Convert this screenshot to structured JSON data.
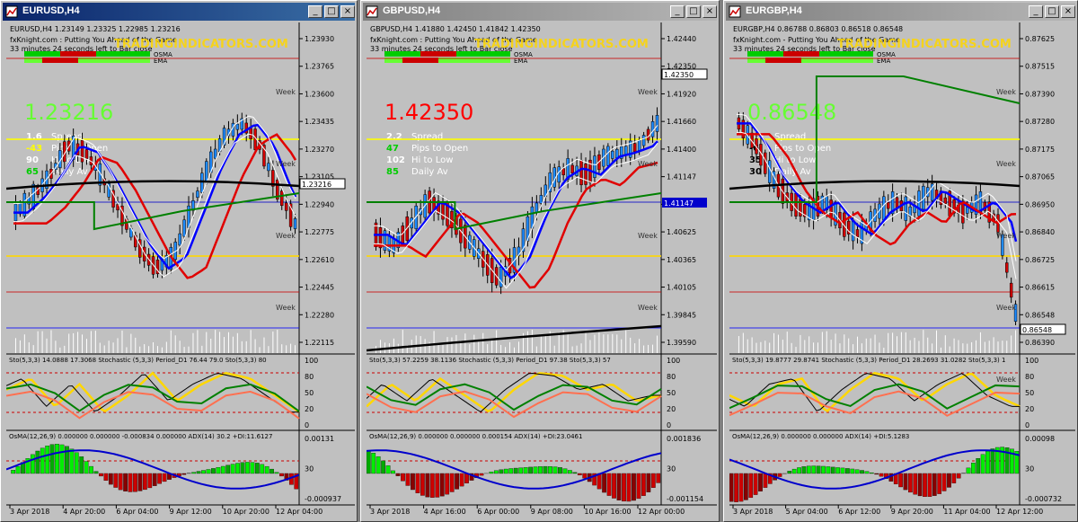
{
  "windows": [
    {
      "title": "EURUSD,H4",
      "active": true,
      "header": "EURUSD,H4 1.23149 1.23325 1.22985 1.23216",
      "promo_line": "fxKnight.com : Putting You Ahead of the Game",
      "countdown": "33 minutes 24 seconds left to Bar close",
      "watermark": "TRADINGINDICATORS.COM",
      "osma_label": "OSMA",
      "ema_label": "EMA",
      "big_price": "1.23216",
      "big_price_color": "#66ff33",
      "info": [
        {
          "value": "1.6",
          "label": "Spread",
          "color": "#ffffff"
        },
        {
          "value": "-43",
          "label": "Pips to Open",
          "color": "#ffff00"
        },
        {
          "value": "90",
          "label": "Hi to Low",
          "color": "#ffffff"
        },
        {
          "value": "65",
          "label": "Daily Av",
          "color": "#00cc00"
        }
      ],
      "price_ticks": [
        "1.23930",
        "1.23765",
        "1.23600",
        "1.23435",
        "1.23270",
        "1.23105",
        "1.22940",
        "1.22775",
        "1.22610",
        "1.22445",
        "1.22280",
        "1.22115"
      ],
      "current_price_tag": "1.23216",
      "week_labels": [
        "Week",
        "Week",
        "Week",
        "Week"
      ],
      "stoch_header": "Sto(5,3,3) 14.0888 17.3068 Stochastic (5,3,3) Period_D1 76.44 79.0 Sto(5,3,3) 80",
      "stoch_ticks": [
        "100",
        "80",
        "50",
        "20",
        "0"
      ],
      "osma_header": "OsMA(12,26,9) 0.000000 0.000000 -0.000834 0.000000 ADX(14) 30.2 +DI:11.6127",
      "osma_ticks": [
        "0.00131",
        "30",
        "-0.000937"
      ],
      "x_labels": [
        "3 Apr 2018",
        "4 Apr 20:00",
        "6 Apr 04:00",
        "9 Apr 12:00",
        "10 Apr 20:00",
        "12 Apr 04:00"
      ]
    },
    {
      "title": "GBPUSD,H4",
      "active": false,
      "header": "GBPUSD,H4 1.41880 1.42450 1.41842 1.42350",
      "promo_line": "fxKnight.com : Putting You Ahead of the Game",
      "countdown": "33 minutes 24 seconds left to Bar close",
      "watermark": "TRADINGINDICATORS.COM",
      "osma_label": "OSMA",
      "ema_label": "EMA",
      "big_price": "1.42350",
      "big_price_color": "#ff0000",
      "info": [
        {
          "value": "2.2",
          "label": "Spread",
          "color": "#ffffff"
        },
        {
          "value": "47",
          "label": "Pips to Open",
          "color": "#00cc00"
        },
        {
          "value": "102",
          "label": "Hi to Low",
          "color": "#ffffff"
        },
        {
          "value": "85",
          "label": "Daily Av",
          "color": "#00cc00"
        }
      ],
      "price_ticks": [
        "1.42440",
        "1.42350",
        "1.41920",
        "1.41660",
        "1.41400",
        "1.41147",
        "1.40885",
        "1.40625",
        "1.40365",
        "1.40105",
        "1.39845",
        "1.39590"
      ],
      "current_price_tag": "1.42350",
      "blue_tag": "1.41147",
      "week_labels": [
        "Week",
        "Week",
        "Week",
        "Week"
      ],
      "stoch_header": "Sto(5,3,3) 57.2259 38.1136 Stochastic (5,3,3) Period_D1 97.38 Sto(5,3,3) 57",
      "stoch_ticks": [
        "100",
        "80",
        "50",
        "20",
        "0"
      ],
      "osma_header": "OsMA(12,26,9) 0.000000 0.000000 0.000154 ADX(14) +DI:23.0461",
      "osma_ticks": [
        "0.001836",
        "30",
        "-0.001154"
      ],
      "x_labels": [
        "3 Apr 2018",
        "4 Apr 16:00",
        "6 Apr 00:00",
        "9 Apr 08:00",
        "10 Apr 16:00",
        "12 Apr 00:00"
      ]
    },
    {
      "title": "EURGBP,H4",
      "active": false,
      "header": "EURGBP,H4 0.86788 0.86803 0.86518 0.86548",
      "promo_line": "fxKnight.com - Putting You Ahead of the Game",
      "countdown": "33 minutes 24 seconds left to Bar close",
      "watermark": "TRADINGINDICATORS.COM",
      "osma_label": "OSMA",
      "ema_label": "EMA",
      "big_price": "0.86548",
      "big_price_color": "#66ff33",
      "info": [
        {
          "value": "2.1",
          "label": "Spread",
          "color": "#ffffff"
        },
        {
          "value": "-6",
          "label": "Pips to Open",
          "color": "#000000"
        },
        {
          "value": "35",
          "label": "Hi to Low",
          "color": "#000000"
        },
        {
          "value": "30",
          "label": "Daily Av",
          "color": "#000000"
        }
      ],
      "price_ticks": [
        "0.87625",
        "0.87515",
        "0.87390",
        "0.87280",
        "0.87175",
        "0.87065",
        "0.86950",
        "0.86840",
        "0.86725",
        "0.86615",
        "0.86548",
        "0.86390"
      ],
      "current_price_tag": "0.86548",
      "week_labels": [
        "Week",
        "Week",
        "Week",
        "Week",
        "Week"
      ],
      "stoch_header": "Sto(5,3,3) 19.8777 29.8741 Stochastic (5,3,3) Period_D1 28.2693 31.0282 Sto(5,3,3) 1",
      "stoch_ticks": [
        "100",
        "80",
        "50",
        "20",
        "0"
      ],
      "osma_header": "OsMA(12,26,9) 0.000000 0.000000 ADX(14) +DI:5.1283",
      "osma_ticks": [
        "0.00098",
        "30",
        "-0.000732"
      ],
      "x_labels": [
        "3 Apr 2018",
        "5 Apr 04:00",
        "6 Apr 12:00",
        "9 Apr 20:00",
        "11 Apr 04:00",
        "12 Apr 12:00"
      ]
    }
  ],
  "window_buttons": {
    "minimize": "_",
    "maximize": "□",
    "close": "×"
  },
  "colors": {
    "chart_bg": "#c0c0c0",
    "bull": "#1e8bff",
    "bear": "#d40000",
    "title_active": "#0a246a"
  }
}
